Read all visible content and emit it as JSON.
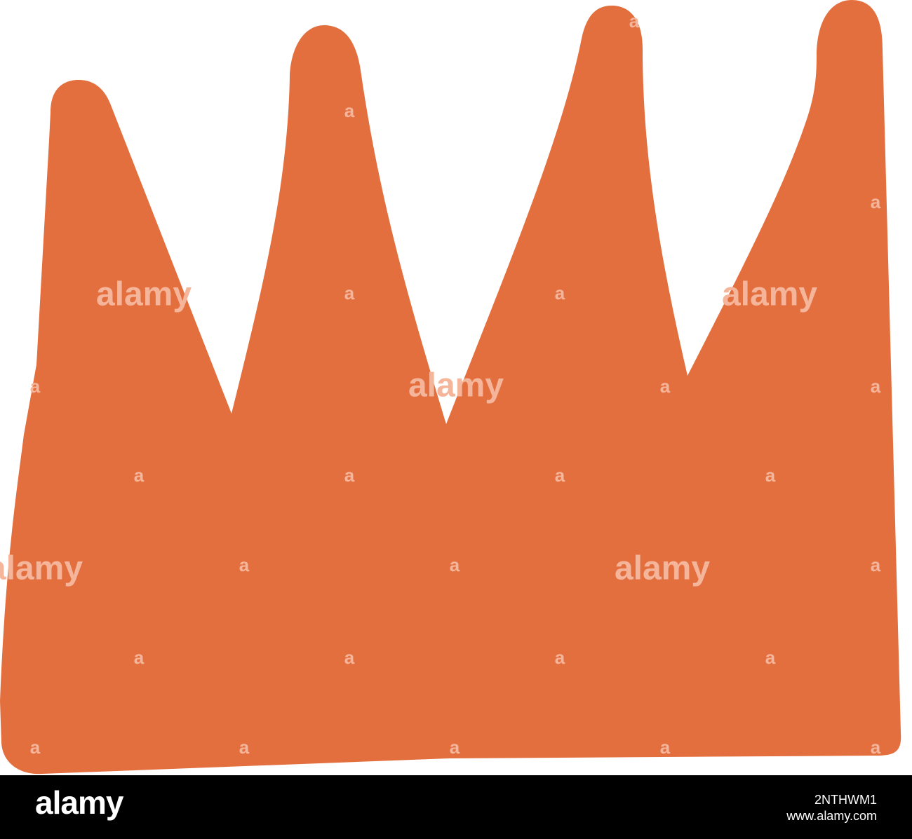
{
  "illustration": {
    "subject": "hand-drawn crown",
    "fill_color": "#E36F3F",
    "background_color": "#FFFFFF"
  },
  "watermark": {
    "text": "alamy",
    "small_text": "a",
    "color": "#F5B59A"
  },
  "footer": {
    "background_color": "#000000",
    "logo_text": "alamy",
    "image_id": "2NTHWM1",
    "site": "www.alamy.com"
  }
}
